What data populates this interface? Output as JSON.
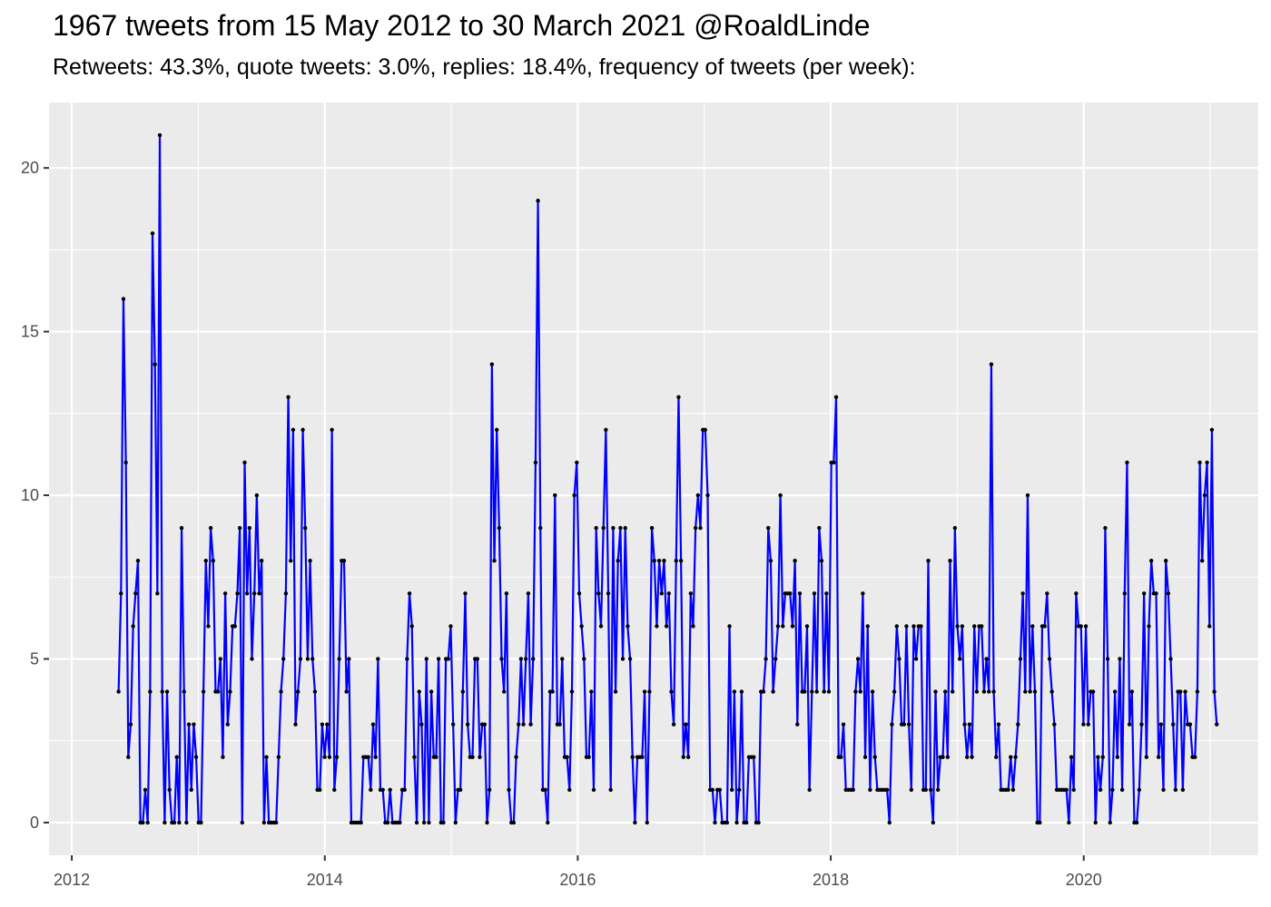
{
  "chart_data": {
    "type": "line",
    "title": "1967 tweets from 15 May 2012 to 30 March 2021 @RoaldLinde",
    "subtitle": "Retweets: 43.3%, quote tweets: 3.0%, replies: 18.4%, frequency of tweets (per week):",
    "xlabel": "",
    "ylabel": "",
    "x_tick_labels": [
      "2012",
      "2014",
      "2016",
      "2018",
      "2020"
    ],
    "y_tick_labels": [
      "0",
      "5",
      "10",
      "15",
      "20"
    ],
    "xlim": [
      2011.82,
      2021.38
    ],
    "ylim": [
      -1,
      22
    ],
    "grid": true,
    "legend": "none",
    "colors": {
      "line": "#0000ff",
      "points": "#000000",
      "panel": "#ebebeb",
      "grid": "#ffffff"
    },
    "series": [
      {
        "x_start": 2012.37,
        "x_step_weeks": 1,
        "values": [
          4,
          7,
          16,
          11,
          2,
          3,
          6,
          7,
          8,
          0,
          0,
          1,
          0,
          4,
          18,
          14,
          7,
          21,
          4,
          0,
          4,
          1,
          0,
          0,
          2,
          0,
          9,
          4,
          0,
          3,
          1,
          3,
          2,
          0,
          0,
          4,
          8,
          6,
          9,
          8,
          4,
          4,
          5,
          2,
          7,
          3,
          4,
          6,
          6,
          7,
          9,
          0,
          11,
          7,
          9,
          5,
          7,
          10,
          7,
          8,
          0,
          2,
          0,
          0,
          0,
          0,
          2,
          4,
          5,
          7,
          13,
          8,
          12,
          3,
          4,
          5,
          12,
          9,
          5,
          8,
          5,
          4,
          1,
          1,
          3,
          2,
          3,
          2,
          12,
          1,
          2,
          5,
          8,
          8,
          4,
          5,
          0,
          0,
          0,
          0,
          0,
          2,
          2,
          2,
          1,
          3,
          2,
          5,
          1,
          1,
          0,
          0,
          1,
          0,
          0,
          0,
          0,
          1,
          1,
          5,
          7,
          6,
          2,
          0,
          4,
          3,
          0,
          5,
          0,
          4,
          2,
          2,
          5,
          0,
          0,
          5,
          5,
          6,
          3,
          0,
          1,
          1,
          4,
          7,
          3,
          2,
          2,
          5,
          5,
          2,
          3,
          3,
          0,
          1,
          14,
          8,
          12,
          9,
          5,
          4,
          7,
          1,
          0,
          0,
          2,
          3,
          5,
          3,
          5,
          7,
          3,
          5,
          11,
          19,
          9,
          1,
          1,
          0,
          4,
          4,
          10,
          3,
          3,
          5,
          2,
          2,
          1,
          4,
          10,
          11,
          7,
          6,
          5,
          2,
          2,
          4,
          1,
          9,
          7,
          6,
          9,
          12,
          7,
          1,
          9,
          4,
          8,
          9,
          5,
          9,
          6,
          5,
          2,
          0,
          2,
          2,
          2,
          4,
          0,
          4,
          9,
          8,
          6,
          8,
          7,
          8,
          6,
          7,
          4,
          3,
          8,
          13,
          8,
          2,
          3,
          2,
          7,
          6,
          9,
          10,
          9,
          12,
          12,
          10,
          1,
          1,
          0,
          1,
          1,
          0,
          0,
          0,
          6,
          1,
          4,
          0,
          1,
          4,
          0,
          0,
          2,
          2,
          2,
          0,
          0,
          4,
          4,
          5,
          9,
          8,
          4,
          5,
          6,
          10,
          6,
          7,
          7,
          7,
          6,
          8,
          3,
          7,
          4,
          4,
          6,
          1,
          4,
          7,
          4,
          9,
          8,
          4,
          7,
          4,
          11,
          11,
          13,
          2,
          2,
          3,
          1,
          1,
          1,
          1,
          4,
          5,
          4,
          7,
          2,
          6,
          1,
          4,
          2,
          1,
          1,
          1,
          1,
          1,
          0,
          3,
          4,
          6,
          5,
          3,
          3,
          6,
          3,
          1,
          6,
          5,
          6,
          6,
          1,
          1,
          8,
          1,
          0,
          4,
          1,
          2,
          2,
          4,
          2,
          8,
          4,
          9,
          6,
          5,
          6,
          3,
          2,
          3,
          2,
          6,
          4,
          6,
          6,
          4,
          5,
          4,
          14,
          4,
          2,
          3,
          1,
          1,
          1,
          1,
          2,
          1,
          2,
          3,
          5,
          7,
          4,
          10,
          4,
          6,
          4,
          0,
          0,
          6,
          6,
          7,
          5,
          4,
          3,
          1,
          1,
          1,
          1,
          1,
          0,
          2,
          1,
          7,
          6,
          6,
          3,
          6,
          3,
          4,
          4,
          0,
          2,
          1,
          2,
          9,
          5,
          0,
          1,
          4,
          2,
          5,
          1,
          7,
          11,
          3,
          4,
          0,
          0,
          1,
          3,
          7,
          2,
          6,
          8,
          7,
          7,
          2,
          3,
          1,
          8,
          7,
          5,
          3,
          1,
          4,
          4,
          1,
          4,
          3,
          3,
          2,
          2,
          4,
          11,
          8,
          10,
          11,
          6,
          12,
          4,
          3
        ]
      }
    ]
  }
}
